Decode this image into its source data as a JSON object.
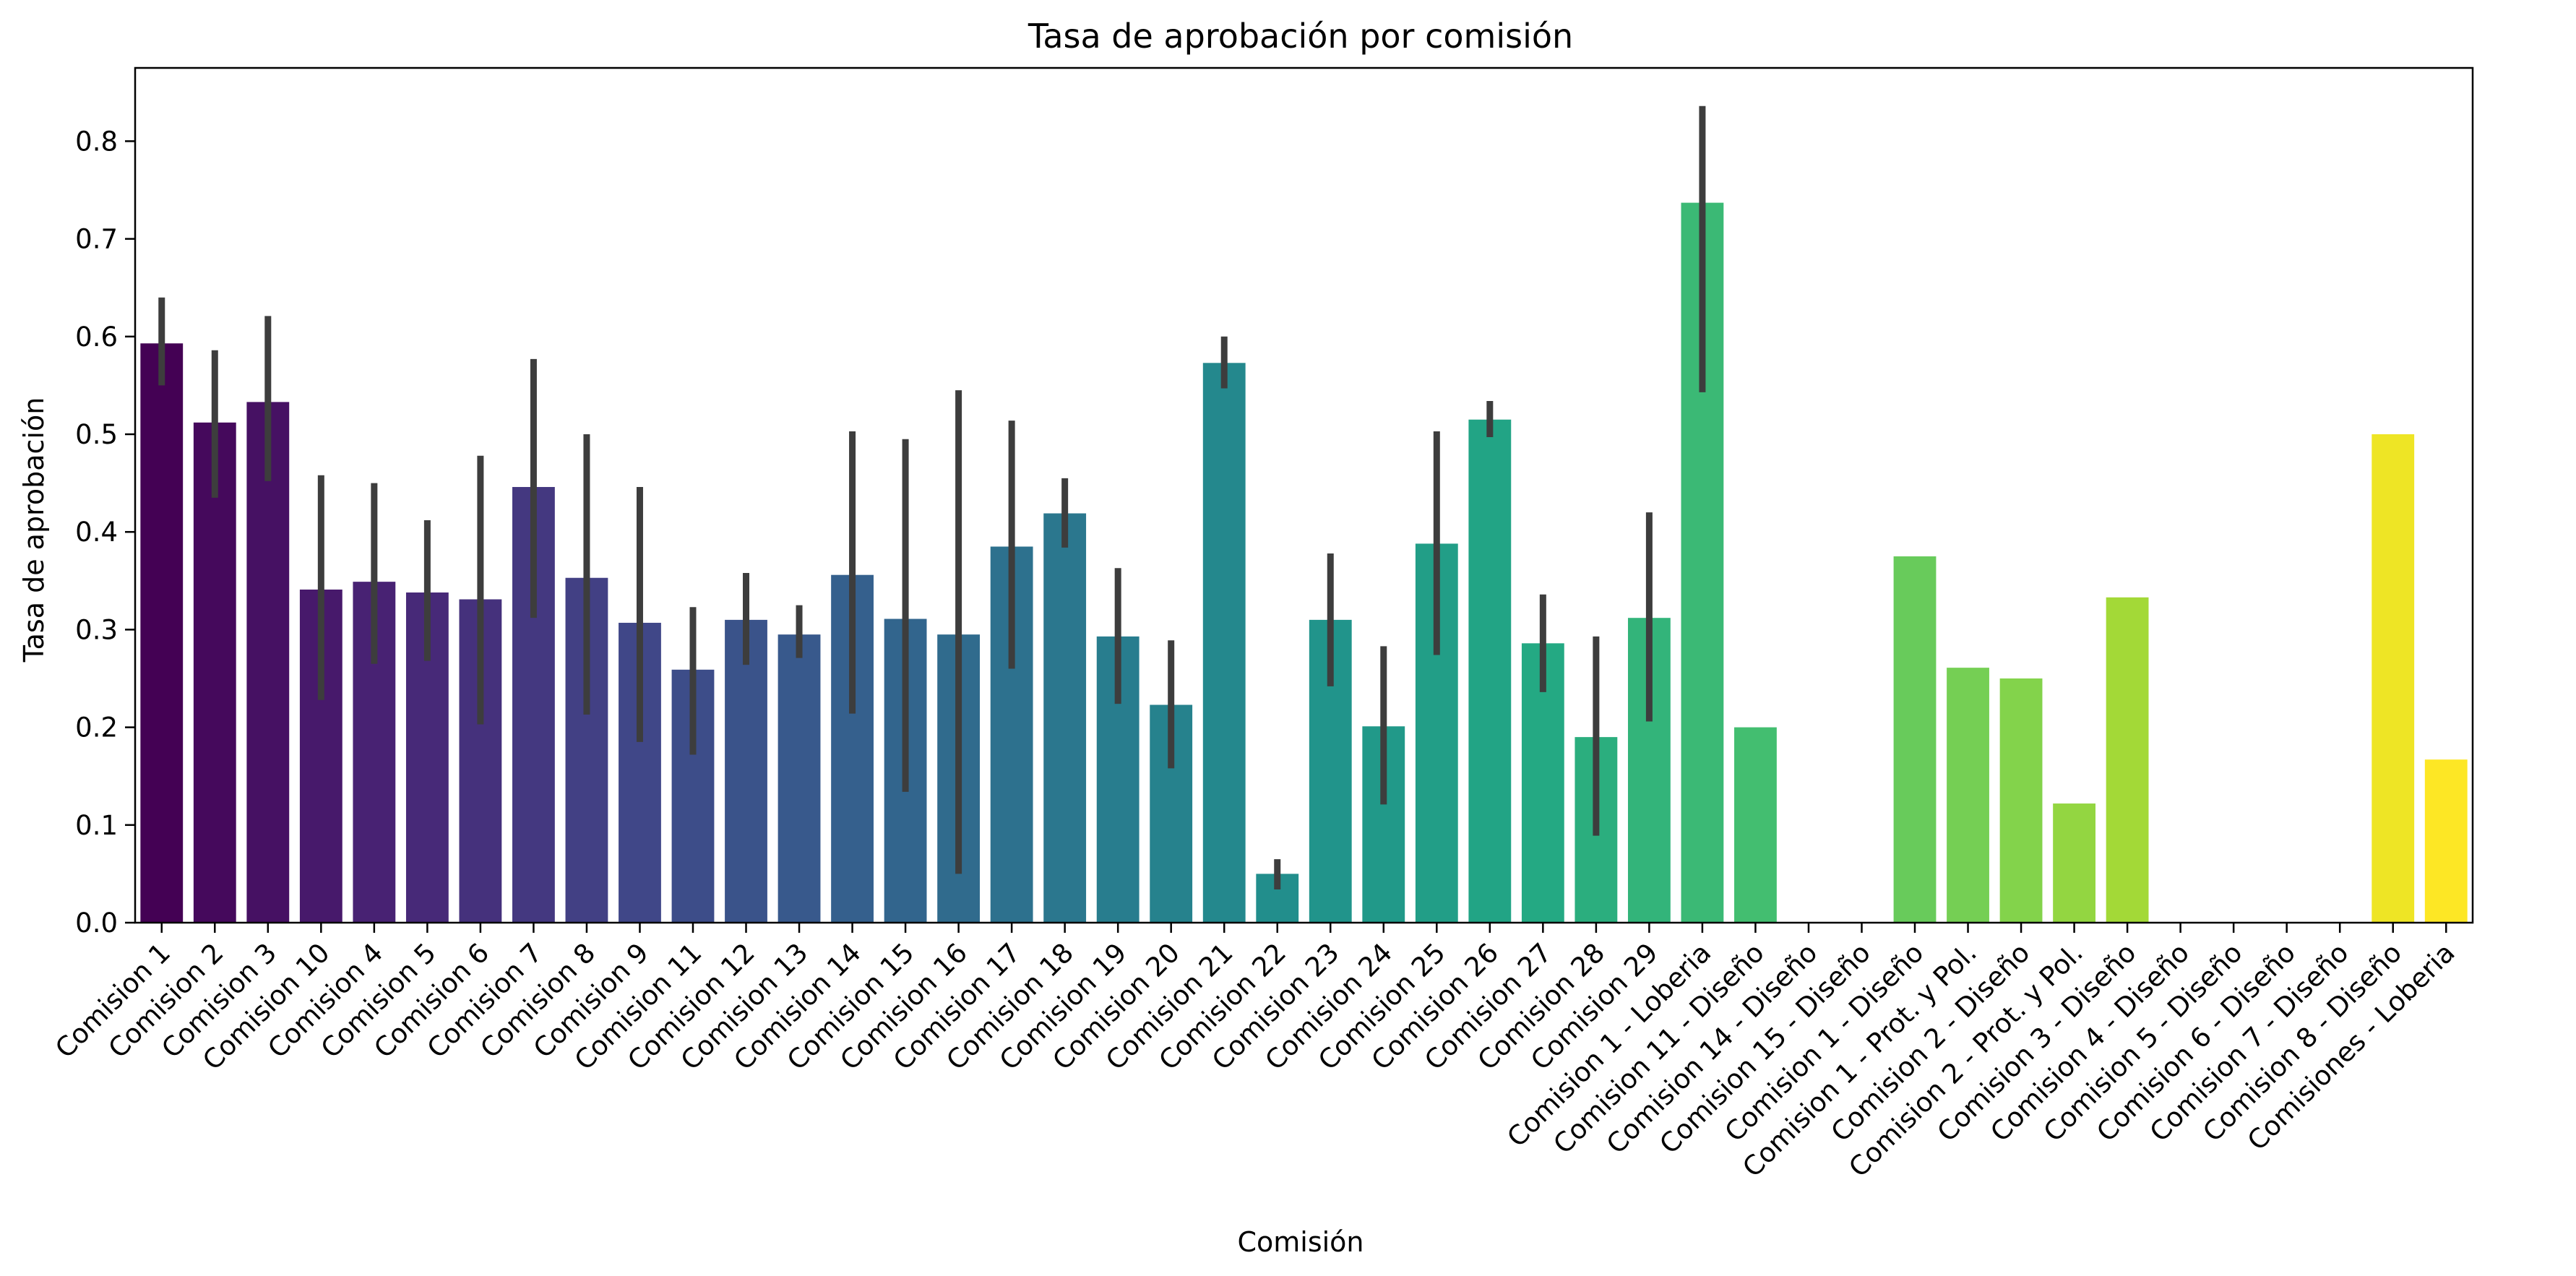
{
  "chart_data": {
    "type": "bar",
    "title": "Tasa de aprobación por comisión",
    "xlabel": "Comisión",
    "ylabel": "Tasa de aprobación",
    "ylim": [
      0,
      0.875
    ],
    "yticks": [
      0.0,
      0.1,
      0.2,
      0.3,
      0.4,
      0.5,
      0.6,
      0.7,
      0.8
    ],
    "ytick_labels": [
      "0.0",
      "0.1",
      "0.2",
      "0.3",
      "0.4",
      "0.5",
      "0.6",
      "0.7",
      "0.8"
    ],
    "grid": false,
    "palette": "viridis",
    "categories": [
      "Comision 1",
      "Comision 2",
      "Comision 3",
      "Comision 10",
      "Comision 4",
      "Comision 5",
      "Comision 6",
      "Comision 7",
      "Comision 8",
      "Comision 9",
      "Comision 11",
      "Comision 12",
      "Comision 13",
      "Comision 14",
      "Comision 15",
      "Comision 16",
      "Comision 17",
      "Comision 18",
      "Comision 19",
      "Comision 20",
      "Comision 21",
      "Comision 22",
      "Comision 23",
      "Comision 24",
      "Comision 25",
      "Comision 26",
      "Comision 27",
      "Comision 28",
      "Comision 29",
      "Comision 1 - Loberia",
      "Comision 11 - Diseño",
      "Comision 14 - Diseño",
      "Comision 15 - Diseño",
      "Comision 1 - Diseño",
      "Comision 1 - Prot. y Pol.",
      "Comision 2 - Diseño",
      "Comision 2 - Prot. y Pol.",
      "Comision 3 - Diseño",
      "Comision 4 - Diseño",
      "Comision 5 - Diseño",
      "Comision 6 - Diseño",
      "Comision 7 - Diseño",
      "Comision 8 - Diseño",
      "Comisiones - Loberia"
    ],
    "values": [
      0.593,
      0.512,
      0.533,
      0.341,
      0.349,
      0.338,
      0.331,
      0.446,
      0.353,
      0.307,
      0.259,
      0.31,
      0.295,
      0.356,
      0.311,
      0.295,
      0.385,
      0.419,
      0.293,
      0.223,
      0.573,
      0.05,
      0.31,
      0.201,
      0.388,
      0.515,
      0.286,
      0.19,
      0.312,
      0.737,
      0.2,
      0.0,
      0.0,
      0.375,
      0.261,
      0.25,
      0.122,
      0.333,
      0.0,
      0.0,
      0.0,
      0.0,
      0.5,
      0.167
    ],
    "error_low": [
      0.55,
      0.435,
      0.452,
      0.228,
      0.265,
      0.268,
      0.203,
      0.312,
      0.213,
      0.185,
      0.172,
      0.264,
      0.271,
      0.214,
      0.134,
      0.05,
      0.26,
      0.384,
      0.224,
      0.158,
      0.547,
      0.034,
      0.242,
      0.121,
      0.274,
      0.497,
      0.236,
      0.089,
      0.206,
      0.543,
      null,
      null,
      null,
      null,
      null,
      null,
      null,
      null,
      null,
      null,
      null,
      null,
      null,
      null
    ],
    "error_high": [
      0.64,
      0.586,
      0.621,
      0.458,
      0.45,
      0.412,
      0.478,
      0.577,
      0.5,
      0.446,
      0.323,
      0.358,
      0.325,
      0.503,
      0.495,
      0.545,
      0.514,
      0.455,
      0.363,
      0.289,
      0.6,
      0.065,
      0.378,
      0.283,
      0.503,
      0.534,
      0.336,
      0.293,
      0.42,
      0.836,
      null,
      null,
      null,
      null,
      null,
      null,
      null,
      null,
      null,
      null,
      null,
      null,
      null,
      null
    ],
    "label_rotation_deg": 45
  }
}
